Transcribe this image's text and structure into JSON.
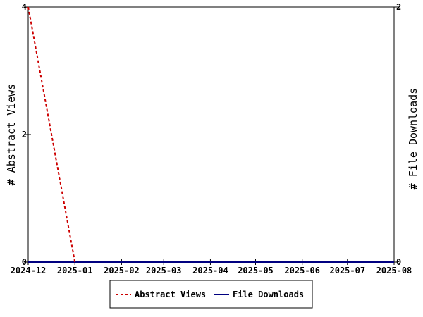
{
  "chart_data": {
    "type": "line",
    "x_ticks": [
      "2024-12",
      "2025-01",
      "2025-02",
      "2025-03",
      "2025-04",
      "2025-05",
      "2025-06",
      "2025-07",
      "2025-08"
    ],
    "y_left": {
      "label": "# Abstract Views",
      "ticks": [
        "0",
        "2",
        "4"
      ],
      "range": [
        0,
        4
      ]
    },
    "y_right": {
      "label": "# File Downloads",
      "ticks": [
        "0",
        "2"
      ],
      "range": [
        0,
        2
      ]
    },
    "series": [
      {
        "name": "Abstract Views",
        "axis": "left",
        "color": "#cc0000",
        "style": "dashed",
        "points": [
          {
            "x": "2024-12",
            "y": 4
          },
          {
            "x": "2025-01",
            "y": 0
          }
        ]
      },
      {
        "name": "File Downloads",
        "axis": "right",
        "color": "#000080",
        "style": "solid",
        "points": [
          {
            "x": "2024-12",
            "y": 0
          },
          {
            "x": "2025-08",
            "y": 0
          }
        ]
      }
    ],
    "legend_position": "bottom-center",
    "grid": false
  }
}
